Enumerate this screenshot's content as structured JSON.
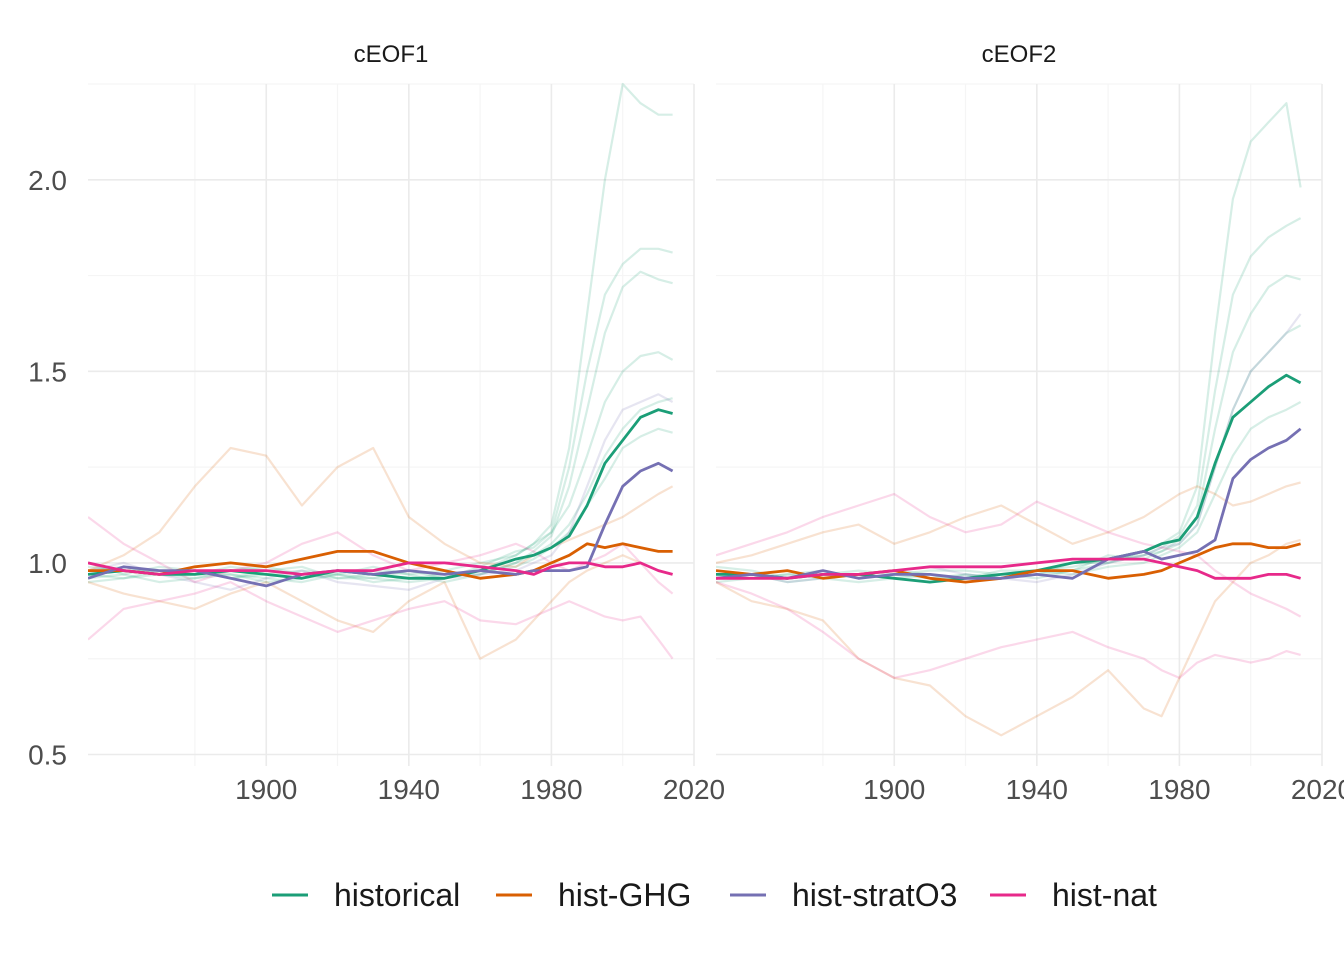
{
  "chart_data": [
    {
      "type": "line",
      "title": "cEOF1",
      "xlabel": "",
      "ylabel": "",
      "xlim": [
        1850,
        2020
      ],
      "ylim": [
        0.47,
        2.25
      ],
      "x_ticks": [
        "1900",
        "1940",
        "1980",
        "2020"
      ],
      "y_ticks": [
        "0.5",
        "1.0",
        "1.5",
        "2.0"
      ],
      "grid": true,
      "x": [
        1850,
        1860,
        1870,
        1880,
        1890,
        1900,
        1910,
        1920,
        1930,
        1940,
        1950,
        1960,
        1970,
        1975,
        1980,
        1985,
        1990,
        1995,
        2000,
        2005,
        2010,
        2014
      ],
      "series": [
        {
          "name": "historical",
          "values": [
            0.97,
            0.98,
            0.97,
            0.97,
            0.98,
            0.97,
            0.96,
            0.98,
            0.97,
            0.96,
            0.96,
            0.98,
            1.01,
            1.02,
            1.04,
            1.07,
            1.15,
            1.26,
            1.32,
            1.38,
            1.4,
            1.39
          ]
        },
        {
          "name": "hist-GHG",
          "values": [
            0.98,
            0.98,
            0.97,
            0.99,
            1.0,
            0.99,
            1.01,
            1.03,
            1.03,
            1.0,
            0.98,
            0.96,
            0.97,
            0.98,
            1.0,
            1.02,
            1.05,
            1.04,
            1.05,
            1.04,
            1.03,
            1.03
          ]
        },
        {
          "name": "hist-stratO3",
          "values": [
            0.96,
            0.99,
            0.98,
            0.98,
            0.96,
            0.94,
            0.97,
            0.98,
            0.97,
            0.98,
            0.97,
            0.98,
            0.97,
            0.98,
            0.98,
            0.98,
            0.99,
            1.1,
            1.2,
            1.24,
            1.26,
            1.24
          ]
        },
        {
          "name": "hist-nat",
          "values": [
            1.0,
            0.98,
            0.97,
            0.98,
            0.98,
            0.98,
            0.97,
            0.98,
            0.98,
            1.0,
            1.0,
            0.99,
            0.98,
            0.97,
            0.99,
            1.0,
            1.0,
            0.99,
            0.99,
            1.0,
            0.98,
            0.97
          ]
        }
      ],
      "ensemble_members": [
        {
          "group": "historical",
          "values": [
            0.96,
            0.97,
            0.95,
            0.96,
            0.97,
            0.96,
            0.95,
            0.97,
            0.96,
            0.95,
            0.96,
            0.98,
            1.02,
            1.05,
            1.1,
            1.3,
            1.65,
            2.0,
            2.25,
            2.2,
            2.17,
            2.17
          ]
        },
        {
          "group": "historical",
          "values": [
            0.99,
            0.98,
            0.98,
            0.97,
            0.99,
            0.98,
            0.97,
            0.96,
            0.97,
            0.98,
            0.96,
            0.99,
            1.03,
            1.04,
            1.08,
            1.25,
            1.5,
            1.7,
            1.78,
            1.82,
            1.82,
            1.81
          ]
        },
        {
          "group": "historical",
          "values": [
            0.97,
            0.96,
            0.97,
            0.98,
            0.96,
            0.97,
            0.98,
            0.97,
            0.95,
            0.96,
            0.97,
            0.97,
            1.0,
            1.03,
            1.07,
            1.2,
            1.4,
            1.6,
            1.72,
            1.76,
            1.74,
            1.73
          ]
        },
        {
          "group": "historical",
          "values": [
            0.98,
            0.99,
            0.97,
            0.96,
            0.98,
            0.99,
            0.97,
            0.98,
            0.98,
            0.97,
            0.98,
            1.0,
            1.02,
            1.05,
            1.08,
            1.15,
            1.28,
            1.42,
            1.5,
            1.54,
            1.55,
            1.53
          ]
        },
        {
          "group": "historical",
          "values": [
            0.95,
            0.96,
            0.98,
            0.97,
            0.97,
            0.95,
            0.96,
            0.97,
            0.99,
            0.97,
            0.95,
            0.97,
            1.0,
            1.02,
            1.05,
            1.1,
            1.18,
            1.28,
            1.35,
            1.4,
            1.42,
            1.43
          ]
        },
        {
          "group": "historical",
          "values": [
            1.0,
            0.97,
            0.99,
            0.98,
            0.96,
            0.98,
            0.99,
            0.96,
            0.96,
            0.98,
            0.97,
            0.98,
            0.99,
            1.01,
            1.04,
            1.08,
            1.15,
            1.22,
            1.3,
            1.33,
            1.35,
            1.34
          ]
        },
        {
          "group": "hist-GHG",
          "values": [
            0.98,
            1.02,
            1.08,
            1.2,
            1.3,
            1.28,
            1.15,
            1.25,
            1.3,
            1.12,
            1.05,
            1.0,
            0.99,
            1.02,
            1.04,
            1.06,
            1.08,
            1.1,
            1.12,
            1.15,
            1.18,
            1.2
          ]
        },
        {
          "group": "hist-GHG",
          "values": [
            0.95,
            0.92,
            0.9,
            0.88,
            0.92,
            0.95,
            0.9,
            0.85,
            0.82,
            0.9,
            0.95,
            0.75,
            0.8,
            0.85,
            0.9,
            0.95,
            0.98,
            1.0,
            1.02,
            1.0,
            0.98,
            0.97
          ]
        },
        {
          "group": "hist-stratO3",
          "values": [
            0.98,
            1.0,
            0.97,
            0.95,
            0.93,
            0.96,
            0.98,
            0.95,
            0.94,
            0.93,
            0.96,
            0.97,
            0.98,
            1.0,
            1.02,
            1.08,
            1.2,
            1.32,
            1.4,
            1.42,
            1.44,
            1.42
          ]
        },
        {
          "group": "hist-nat",
          "values": [
            1.12,
            1.05,
            1.0,
            0.95,
            0.98,
            1.0,
            1.05,
            1.08,
            1.02,
            0.98,
            1.0,
            1.02,
            1.05,
            1.03,
            1.0,
            0.98,
            1.0,
            1.02,
            1.05,
            1.0,
            0.95,
            0.92
          ]
        },
        {
          "group": "hist-nat",
          "values": [
            0.8,
            0.88,
            0.9,
            0.92,
            0.95,
            0.9,
            0.86,
            0.82,
            0.85,
            0.88,
            0.9,
            0.85,
            0.84,
            0.86,
            0.88,
            0.9,
            0.88,
            0.86,
            0.85,
            0.86,
            0.8,
            0.75
          ]
        }
      ]
    },
    {
      "type": "line",
      "title": "cEOF2",
      "xlabel": "",
      "ylabel": "",
      "xlim": [
        1850,
        2020
      ],
      "ylim": [
        0.47,
        2.25
      ],
      "x_ticks": [
        "1900",
        "1940",
        "1980",
        "2020"
      ],
      "y_ticks": [
        "0.5",
        "1.0",
        "1.5",
        "2.0"
      ],
      "grid": true,
      "x": [
        1850,
        1860,
        1870,
        1880,
        1890,
        1900,
        1910,
        1920,
        1930,
        1940,
        1950,
        1960,
        1970,
        1975,
        1980,
        1985,
        1990,
        1995,
        2000,
        2005,
        2010,
        2014
      ],
      "series": [
        {
          "name": "historical",
          "values": [
            0.97,
            0.97,
            0.96,
            0.97,
            0.97,
            0.96,
            0.95,
            0.96,
            0.97,
            0.98,
            1.0,
            1.01,
            1.03,
            1.05,
            1.06,
            1.12,
            1.26,
            1.38,
            1.42,
            1.46,
            1.49,
            1.47
          ]
        },
        {
          "name": "hist-GHG",
          "values": [
            0.98,
            0.97,
            0.98,
            0.96,
            0.97,
            0.98,
            0.96,
            0.95,
            0.96,
            0.98,
            0.98,
            0.96,
            0.97,
            0.98,
            1.0,
            1.02,
            1.04,
            1.05,
            1.05,
            1.04,
            1.04,
            1.05
          ]
        },
        {
          "name": "hist-stratO3",
          "values": [
            0.96,
            0.97,
            0.96,
            0.98,
            0.96,
            0.97,
            0.97,
            0.96,
            0.96,
            0.97,
            0.96,
            1.01,
            1.03,
            1.01,
            1.02,
            1.03,
            1.06,
            1.22,
            1.27,
            1.3,
            1.32,
            1.35
          ]
        },
        {
          "name": "hist-nat",
          "values": [
            0.96,
            0.96,
            0.96,
            0.97,
            0.97,
            0.98,
            0.99,
            0.99,
            0.99,
            1.0,
            1.01,
            1.01,
            1.01,
            1.0,
            0.99,
            0.98,
            0.96,
            0.96,
            0.96,
            0.97,
            0.97,
            0.96
          ]
        }
      ],
      "ensemble_members": [
        {
          "group": "historical",
          "values": [
            0.96,
            0.97,
            0.95,
            0.96,
            0.97,
            0.96,
            0.95,
            0.97,
            0.96,
            0.97,
            0.98,
            1.0,
            1.03,
            1.05,
            1.08,
            1.2,
            1.6,
            1.95,
            2.1,
            2.15,
            2.2,
            1.98
          ]
        },
        {
          "group": "historical",
          "values": [
            0.98,
            0.97,
            0.98,
            0.96,
            0.97,
            0.98,
            0.97,
            0.96,
            0.98,
            0.98,
            0.99,
            1.01,
            1.02,
            1.04,
            1.07,
            1.15,
            1.45,
            1.7,
            1.8,
            1.85,
            1.88,
            1.9
          ]
        },
        {
          "group": "historical",
          "values": [
            0.97,
            0.96,
            0.97,
            0.98,
            0.96,
            0.97,
            0.96,
            0.97,
            0.96,
            0.97,
            1.0,
            1.0,
            1.02,
            1.03,
            1.06,
            1.12,
            1.35,
            1.55,
            1.65,
            1.72,
            1.75,
            1.74
          ]
        },
        {
          "group": "historical",
          "values": [
            0.99,
            0.98,
            0.96,
            0.97,
            0.98,
            0.97,
            0.98,
            0.98,
            0.97,
            0.96,
            0.98,
            1.02,
            1.01,
            1.03,
            1.05,
            1.1,
            1.25,
            1.4,
            1.5,
            1.55,
            1.6,
            1.62
          ]
        },
        {
          "group": "historical",
          "values": [
            0.95,
            0.96,
            0.97,
            0.96,
            0.95,
            0.96,
            0.97,
            0.95,
            0.96,
            0.98,
            0.97,
            0.99,
            1.0,
            1.02,
            1.04,
            1.08,
            1.18,
            1.28,
            1.35,
            1.38,
            1.4,
            1.42
          ]
        },
        {
          "group": "hist-GHG",
          "values": [
            0.95,
            0.9,
            0.88,
            0.85,
            0.75,
            0.7,
            0.68,
            0.6,
            0.55,
            0.6,
            0.65,
            0.72,
            0.62,
            0.6,
            0.7,
            0.8,
            0.9,
            0.95,
            1.0,
            1.02,
            1.05,
            1.06
          ]
        },
        {
          "group": "hist-GHG",
          "values": [
            1.0,
            1.02,
            1.05,
            1.08,
            1.1,
            1.05,
            1.08,
            1.12,
            1.15,
            1.1,
            1.05,
            1.08,
            1.12,
            1.15,
            1.18,
            1.2,
            1.18,
            1.15,
            1.16,
            1.18,
            1.2,
            1.21
          ]
        },
        {
          "group": "hist-stratO3",
          "values": [
            0.98,
            0.97,
            0.95,
            0.96,
            0.97,
            0.98,
            0.99,
            0.97,
            0.96,
            0.95,
            0.97,
            1.0,
            1.02,
            1.04,
            1.05,
            1.1,
            1.25,
            1.4,
            1.5,
            1.55,
            1.6,
            1.65
          ]
        },
        {
          "group": "hist-nat",
          "values": [
            0.95,
            0.92,
            0.88,
            0.82,
            0.75,
            0.7,
            0.72,
            0.75,
            0.78,
            0.8,
            0.82,
            0.78,
            0.75,
            0.72,
            0.7,
            0.74,
            0.76,
            0.75,
            0.74,
            0.75,
            0.77,
            0.76
          ]
        },
        {
          "group": "hist-nat",
          "values": [
            1.02,
            1.05,
            1.08,
            1.12,
            1.15,
            1.18,
            1.12,
            1.08,
            1.1,
            1.16,
            1.12,
            1.08,
            1.05,
            1.04,
            1.03,
            1.02,
            0.98,
            0.95,
            0.92,
            0.9,
            0.88,
            0.86
          ]
        }
      ]
    }
  ],
  "legend": {
    "placement": "bottom",
    "items": [
      {
        "label": "historical",
        "color": "#1b9e77"
      },
      {
        "label": "hist-GHG",
        "color": "#d95f02"
      },
      {
        "label": "hist-stratO3",
        "color": "#7570b3"
      },
      {
        "label": "hist-nat",
        "color": "#e7298a"
      }
    ]
  },
  "colors": {
    "historical": "#1b9e77",
    "hist-GHG": "#d95f02",
    "hist-stratO3": "#7570b3",
    "hist-nat": "#e7298a",
    "grid_major": "#ebebeb",
    "grid_minor": "#f5f5f5",
    "text": "#4d4d4d"
  }
}
